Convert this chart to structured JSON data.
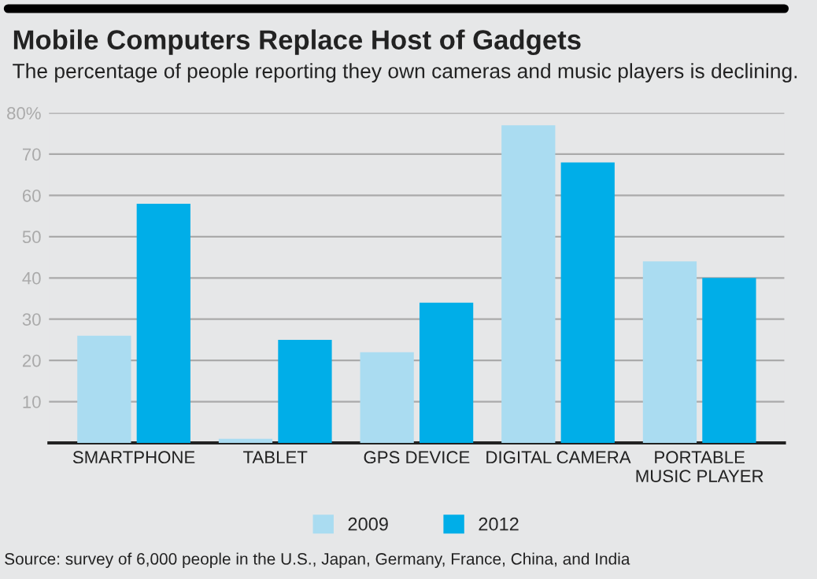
{
  "chart_data": {
    "type": "bar",
    "title": "Mobile Computers Replace Host of Gadgets",
    "subtitle": "The percentage of people reporting they own cameras and music players is declining.",
    "categories": [
      "SMARTPHONE",
      "TABLET",
      "GPS DEVICE",
      "DIGITAL CAMERA",
      "PORTABLE\nMUSIC PLAYER"
    ],
    "series": [
      {
        "name": "2009",
        "color": "#aadcf1",
        "values": [
          26,
          1,
          22,
          77,
          44
        ]
      },
      {
        "name": "2012",
        "color": "#00aee8",
        "values": [
          58,
          25,
          34,
          68,
          40
        ]
      }
    ],
    "ylim": [
      0,
      80
    ],
    "yticks": [
      10,
      20,
      30,
      40,
      50,
      60,
      70,
      {
        "value": 80,
        "label": "80%"
      }
    ],
    "grid": "y",
    "legend": "bottom",
    "annotations": [
      "Source: survey of 6,000 people in the U.S., Japan, Germany, France, China, and India"
    ]
  }
}
